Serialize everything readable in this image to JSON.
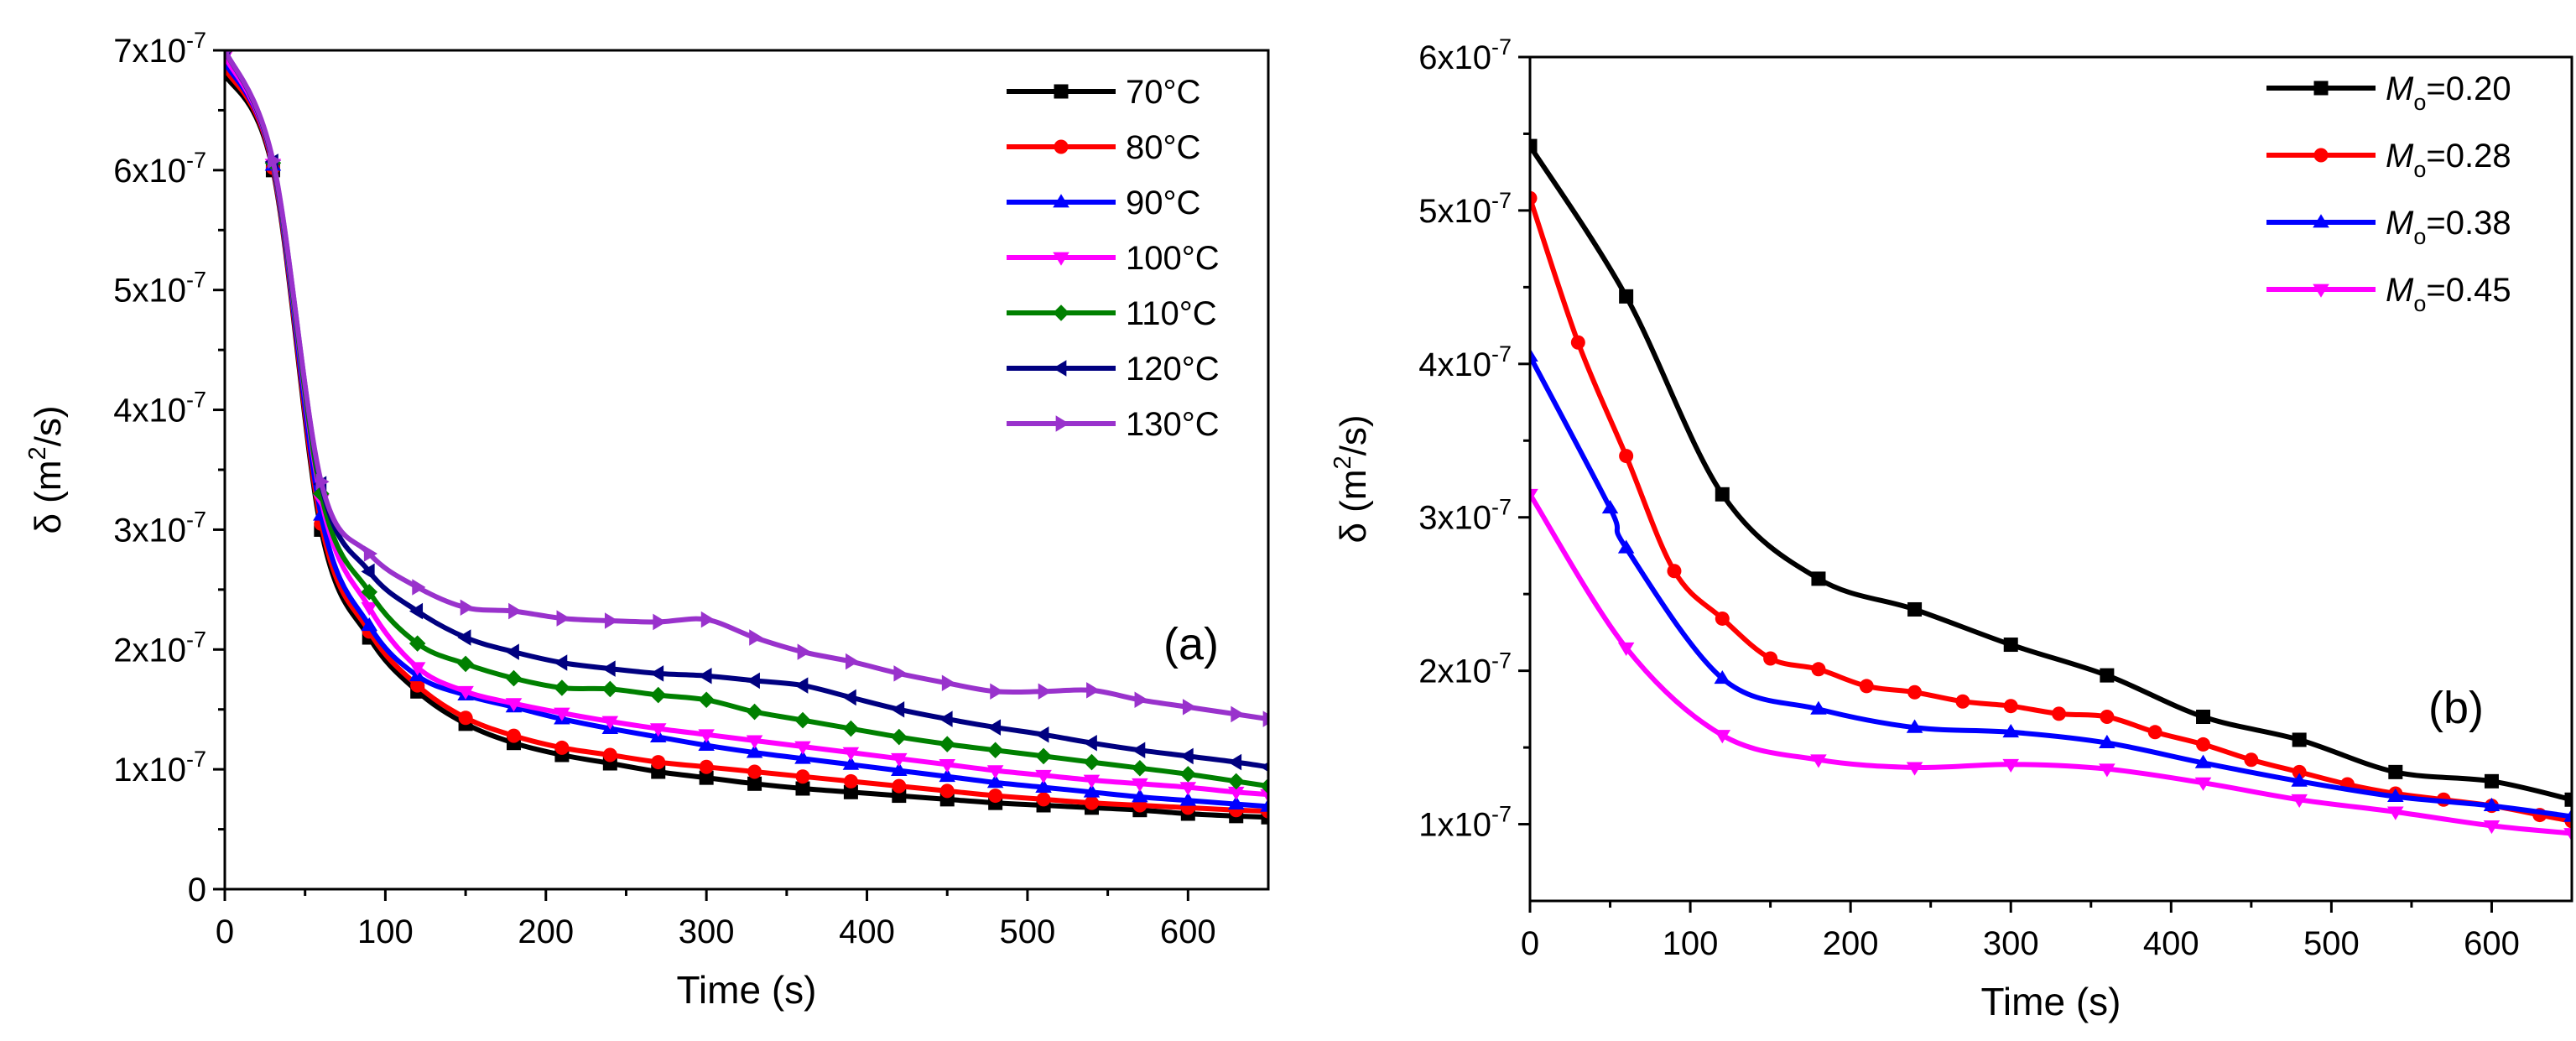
{
  "chart_data": [
    {
      "type": "line",
      "panel_label": "(a)",
      "xlabel": "Time (s)",
      "ylabel_parts": {
        "main": "δ (m",
        "sup": "2",
        "tail": "/s)"
      },
      "xlim": [
        0,
        650
      ],
      "ylim": [
        0,
        7e-07
      ],
      "x_ticks": [
        0,
        100,
        200,
        300,
        400,
        500,
        600
      ],
      "x_tick_labels": [
        "0",
        "100",
        "200",
        "300",
        "400",
        "500",
        "600"
      ],
      "y_ticks": [
        0,
        1e-07,
        2e-07,
        3e-07,
        4e-07,
        5e-07,
        6e-07,
        7e-07
      ],
      "y_tick_labels": [
        {
          "base": "0",
          "exp": ""
        },
        {
          "base": "1x10",
          "exp": "-7"
        },
        {
          "base": "2x10",
          "exp": "-7"
        },
        {
          "base": "3x10",
          "exp": "-7"
        },
        {
          "base": "4x10",
          "exp": "-7"
        },
        {
          "base": "5x10",
          "exp": "-7"
        },
        {
          "base": "6x10",
          "exp": "-7"
        },
        {
          "base": "7x10",
          "exp": "-7"
        }
      ],
      "legend_position": "top-right",
      "series": [
        {
          "name": "70°C",
          "color": "#000000",
          "marker": "square",
          "x": [
            0,
            30,
            60,
            90,
            120,
            150,
            180,
            210,
            240,
            270,
            300,
            330,
            360,
            390,
            420,
            450,
            480,
            510,
            540,
            570,
            600,
            630,
            650
          ],
          "y": [
            6.8e-07,
            6e-07,
            3e-07,
            2.1e-07,
            1.65e-07,
            1.38e-07,
            1.22e-07,
            1.12e-07,
            1.05e-07,
            9.8e-08,
            9.3e-08,
            8.8e-08,
            8.4e-08,
            8.1e-08,
            7.8e-08,
            7.5e-08,
            7.2e-08,
            7e-08,
            6.8e-08,
            6.6e-08,
            6.3e-08,
            6.1e-08,
            6e-08
          ]
        },
        {
          "name": "80°C",
          "color": "#ff0000",
          "marker": "circle",
          "x": [
            0,
            30,
            60,
            90,
            120,
            150,
            180,
            210,
            240,
            270,
            300,
            330,
            360,
            390,
            420,
            450,
            480,
            510,
            540,
            570,
            600,
            630,
            650
          ],
          "y": [
            6.85e-07,
            6.02e-07,
            3.05e-07,
            2.15e-07,
            1.7e-07,
            1.43e-07,
            1.28e-07,
            1.18e-07,
            1.12e-07,
            1.06e-07,
            1.02e-07,
            9.8e-08,
            9.4e-08,
            9e-08,
            8.6e-08,
            8.2e-08,
            7.8e-08,
            7.5e-08,
            7.2e-08,
            7e-08,
            6.8e-08,
            6.6e-08,
            6.5e-08
          ]
        },
        {
          "name": "90°C",
          "color": "#0000ff",
          "marker": "triangle-up",
          "x": [
            0,
            30,
            60,
            90,
            120,
            150,
            180,
            210,
            240,
            270,
            300,
            330,
            360,
            390,
            420,
            450,
            480,
            510,
            540,
            570,
            600,
            630,
            650
          ],
          "y": [
            6.9e-07,
            6.04e-07,
            3.12e-07,
            2.2e-07,
            1.78e-07,
            1.62e-07,
            1.52e-07,
            1.42e-07,
            1.34e-07,
            1.27e-07,
            1.2e-07,
            1.14e-07,
            1.09e-07,
            1.04e-07,
            9.9e-08,
            9.4e-08,
            8.9e-08,
            8.5e-08,
            8.1e-08,
            7.7e-08,
            7.4e-08,
            7.1e-08,
            6.9e-08
          ]
        },
        {
          "name": "100°C",
          "color": "#ff00ff",
          "marker": "triangle-down",
          "x": [
            0,
            30,
            60,
            90,
            120,
            150,
            180,
            210,
            240,
            270,
            300,
            330,
            360,
            390,
            420,
            450,
            480,
            510,
            540,
            570,
            600,
            630,
            650
          ],
          "y": [
            6.95e-07,
            6.05e-07,
            3.25e-07,
            2.35e-07,
            1.85e-07,
            1.65e-07,
            1.55e-07,
            1.47e-07,
            1.4e-07,
            1.34e-07,
            1.29e-07,
            1.24e-07,
            1.19e-07,
            1.14e-07,
            1.09e-07,
            1.04e-07,
            9.9e-08,
            9.5e-08,
            9.1e-08,
            8.8e-08,
            8.5e-08,
            8.1e-08,
            7.9e-08
          ]
        },
        {
          "name": "110°C",
          "color": "#008000",
          "marker": "diamond",
          "x": [
            0,
            30,
            60,
            90,
            120,
            150,
            180,
            210,
            240,
            270,
            300,
            330,
            360,
            390,
            420,
            450,
            480,
            510,
            540,
            570,
            600,
            630,
            650
          ],
          "y": [
            7e-07,
            6.06e-07,
            3.3e-07,
            2.48e-07,
            2.05e-07,
            1.88e-07,
            1.76e-07,
            1.68e-07,
            1.67e-07,
            1.62e-07,
            1.58e-07,
            1.48e-07,
            1.41e-07,
            1.34e-07,
            1.27e-07,
            1.21e-07,
            1.16e-07,
            1.11e-07,
            1.06e-07,
            1.01e-07,
            9.6e-08,
            9e-08,
            8.6e-08
          ]
        },
        {
          "name": "120°C",
          "color": "#000080",
          "marker": "triangle-left",
          "x": [
            0,
            30,
            60,
            90,
            120,
            150,
            180,
            210,
            240,
            270,
            300,
            330,
            360,
            390,
            420,
            450,
            480,
            510,
            540,
            570,
            600,
            630,
            650
          ],
          "y": [
            7e-07,
            6.07e-07,
            3.38e-07,
            2.65e-07,
            2.32e-07,
            2.1e-07,
            1.98e-07,
            1.89e-07,
            1.84e-07,
            1.8e-07,
            1.78e-07,
            1.74e-07,
            1.7e-07,
            1.6e-07,
            1.5e-07,
            1.42e-07,
            1.35e-07,
            1.29e-07,
            1.22e-07,
            1.16e-07,
            1.11e-07,
            1.06e-07,
            1.02e-07
          ]
        },
        {
          "name": "130°C",
          "color": "#9932cc",
          "marker": "triangle-right",
          "x": [
            0,
            30,
            60,
            90,
            120,
            150,
            180,
            210,
            240,
            270,
            300,
            330,
            360,
            390,
            420,
            450,
            480,
            510,
            540,
            570,
            600,
            630,
            650
          ],
          "y": [
            7e-07,
            6.08e-07,
            3.4e-07,
            2.8e-07,
            2.52e-07,
            2.35e-07,
            2.32e-07,
            2.26e-07,
            2.24e-07,
            2.23e-07,
            2.25e-07,
            2.1e-07,
            1.98e-07,
            1.9e-07,
            1.8e-07,
            1.72e-07,
            1.65e-07,
            1.65e-07,
            1.66e-07,
            1.58e-07,
            1.52e-07,
            1.46e-07,
            1.42e-07
          ]
        }
      ]
    },
    {
      "type": "line",
      "panel_label": "(b)",
      "xlabel": "Time (s)",
      "ylabel_parts": {
        "main": "δ (m",
        "sup": "2",
        "tail": "/s)"
      },
      "xlim": [
        0,
        650
      ],
      "ylim": [
        5e-08,
        6e-07
      ],
      "x_ticks": [
        0,
        100,
        200,
        300,
        400,
        500,
        600
      ],
      "x_tick_labels": [
        "0",
        "100",
        "200",
        "300",
        "400",
        "500",
        "600"
      ],
      "y_ticks": [
        1e-07,
        2e-07,
        3e-07,
        4e-07,
        5e-07,
        6e-07
      ],
      "y_tick_labels": [
        {
          "base": "1x10",
          "exp": "-7"
        },
        {
          "base": "2x10",
          "exp": "-7"
        },
        {
          "base": "3x10",
          "exp": "-7"
        },
        {
          "base": "4x10",
          "exp": "-7"
        },
        {
          "base": "5x10",
          "exp": "-7"
        },
        {
          "base": "6x10",
          "exp": "-7"
        }
      ],
      "legend_position": "top-right",
      "series": [
        {
          "name": "Mo=0.20",
          "label": {
            "var": "M",
            "sub": "o",
            "val": "=0.20"
          },
          "color": "#000000",
          "marker": "square",
          "x": [
            0,
            60,
            120,
            180,
            240,
            300,
            360,
            420,
            480,
            540,
            600,
            650
          ],
          "y": [
            5.42e-07,
            4.44e-07,
            3.15e-07,
            2.6e-07,
            2.4e-07,
            2.17e-07,
            1.97e-07,
            1.7e-07,
            1.55e-07,
            1.34e-07,
            1.28e-07,
            1.16e-07
          ]
        },
        {
          "name": "Mo=0.28",
          "label": {
            "var": "M",
            "sub": "o",
            "val": "=0.28"
          },
          "color": "#ff0000",
          "marker": "circle",
          "x": [
            0,
            30,
            60,
            90,
            120,
            150,
            180,
            210,
            240,
            270,
            300,
            330,
            360,
            390,
            420,
            450,
            480,
            510,
            540,
            570,
            600,
            630,
            650
          ],
          "y": [
            5.08e-07,
            4.14e-07,
            3.4e-07,
            2.65e-07,
            2.34e-07,
            2.08e-07,
            2.01e-07,
            1.9e-07,
            1.86e-07,
            1.8e-07,
            1.77e-07,
            1.72e-07,
            1.7e-07,
            1.6e-07,
            1.52e-07,
            1.42e-07,
            1.34e-07,
            1.26e-07,
            1.2e-07,
            1.16e-07,
            1.12e-07,
            1.06e-07,
            1.02e-07
          ]
        },
        {
          "name": "Mo=0.38",
          "label": {
            "var": "M",
            "sub": "o",
            "val": "=0.38"
          },
          "color": "#0000ff",
          "marker": "triangle-up",
          "x": [
            0,
            50,
            60,
            120,
            180,
            240,
            300,
            360,
            420,
            480,
            540,
            600,
            650
          ],
          "y": [
            4.05e-07,
            3.06e-07,
            2.8e-07,
            1.95e-07,
            1.75e-07,
            1.63e-07,
            1.6e-07,
            1.53e-07,
            1.4e-07,
            1.28e-07,
            1.18e-07,
            1.12e-07,
            1.05e-07
          ]
        },
        {
          "name": "Mo=0.45",
          "label": {
            "var": "M",
            "sub": "o",
            "val": "=0.45"
          },
          "color": "#ff00ff",
          "marker": "triangle-down",
          "x": [
            0,
            60,
            120,
            180,
            240,
            300,
            360,
            420,
            480,
            540,
            600,
            650
          ],
          "y": [
            3.15e-07,
            2.15e-07,
            1.58e-07,
            1.42e-07,
            1.37e-07,
            1.39e-07,
            1.36e-07,
            1.27e-07,
            1.16e-07,
            1.08e-07,
            9.9e-08,
            9.4e-08
          ]
        }
      ]
    }
  ]
}
